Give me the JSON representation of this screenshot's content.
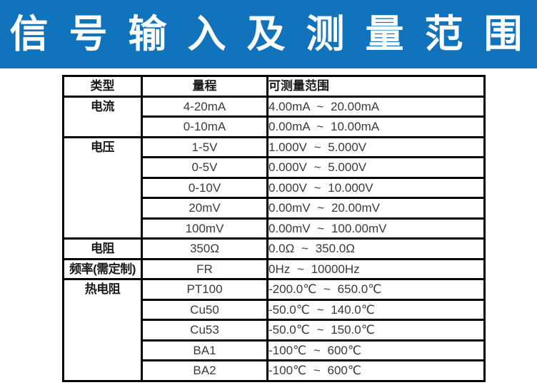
{
  "banner": {
    "title": "信 号 输 入 及 测 量 范 围",
    "background_color": "#1273bd",
    "text_color": "#ffffff"
  },
  "table": {
    "headers": {
      "type": "类型",
      "range": "量程",
      "measurable": "可测量范围"
    },
    "groups": [
      {
        "type": "电流",
        "rows": [
          {
            "range": "4-20mA",
            "measurable": "4.00mA ~ 20.00mA"
          },
          {
            "range": "0-10mA",
            "measurable": "0.00mA ~ 10.00mA"
          }
        ]
      },
      {
        "type": "电压",
        "rows": [
          {
            "range": "1-5V",
            "measurable": "1.000V ~ 5.000V"
          },
          {
            "range": "0-5V",
            "measurable": "0.000V ~ 5.000V"
          },
          {
            "range": "0-10V",
            "measurable": "0.000V ~ 10.000V"
          },
          {
            "range": "20mV",
            "measurable": "0.00mV ~ 20.00mV"
          },
          {
            "range": "100mV",
            "measurable": "0.00mV ~ 100.00mV"
          }
        ]
      },
      {
        "type": "电阻",
        "rows": [
          {
            "range": "350Ω",
            "measurable": "0.0Ω ~ 350.0Ω"
          }
        ]
      },
      {
        "type": "频率(需定制)",
        "rows": [
          {
            "range": "FR",
            "measurable": "0Hz ~ 10000Hz"
          }
        ]
      },
      {
        "type": "热电阻",
        "rows": [
          {
            "range": "PT100",
            "measurable": "-200.0℃ ~ 650.0℃"
          },
          {
            "range": "Cu50",
            "measurable": "-50.0℃ ~ 140.0℃"
          },
          {
            "range": "Cu53",
            "measurable": "-50.0℃ ~ 150.0℃"
          },
          {
            "range": "BA1",
            "measurable": "-100℃ ~ 600℃"
          },
          {
            "range": "BA2",
            "measurable": "-100℃ ~ 600℃"
          }
        ]
      }
    ],
    "border_color": "#000000",
    "value_text_color": "#3a3a3a"
  }
}
